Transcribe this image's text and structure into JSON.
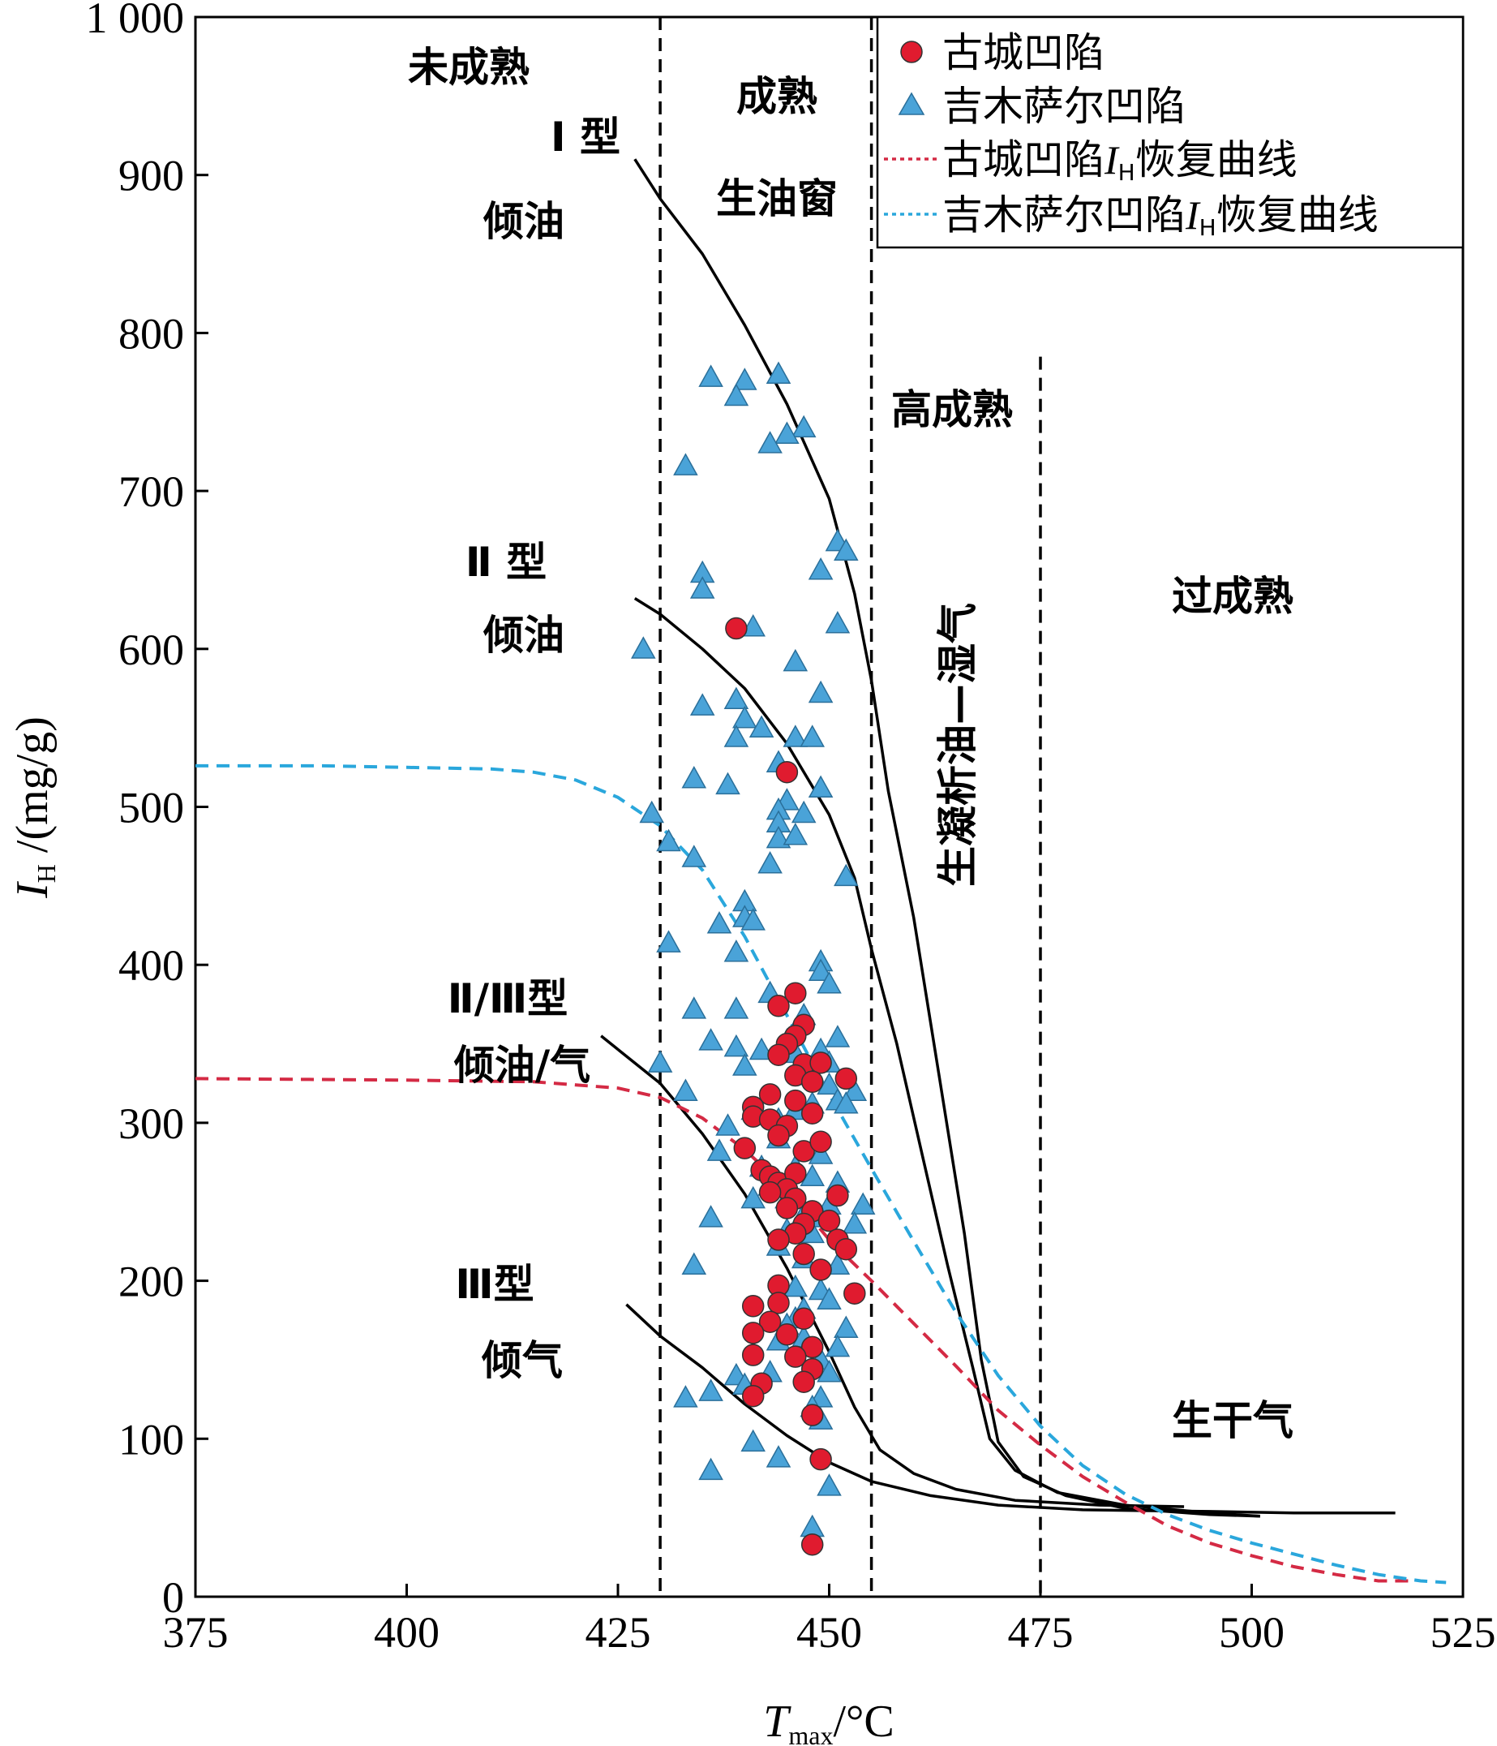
{
  "chart_data": {
    "type": "scatter",
    "xlabel": {
      "main": "T",
      "sub": "max",
      "unit": "/°C"
    },
    "ylabel": {
      "main": "I",
      "sub": "H",
      "unit": " /(mg/g)"
    },
    "xlim": [
      375,
      525
    ],
    "ylim": [
      0,
      1000
    ],
    "xticks": [
      375,
      400,
      425,
      450,
      475,
      500,
      525
    ],
    "xtick_labels": [
      "375",
      "400",
      "425",
      "450",
      "475",
      "500",
      "525"
    ],
    "yticks": [
      0,
      100,
      200,
      300,
      400,
      500,
      600,
      700,
      800,
      900,
      1000
    ],
    "ytick_labels": [
      "0",
      "100",
      "200",
      "300",
      "400",
      "500",
      "600",
      "700",
      "800",
      "900",
      "1 000"
    ],
    "legend_position": "top-right",
    "grid": false,
    "vlines": [
      430,
      455,
      475
    ],
    "vline_top": 785,
    "series": [
      {
        "name": "古城凹陷",
        "marker": "circle",
        "color": "#e01b2f",
        "points": [
          [
            439,
            613
          ],
          [
            445,
            522
          ],
          [
            446,
            382
          ],
          [
            444,
            374
          ],
          [
            447,
            362
          ],
          [
            446,
            355
          ],
          [
            445,
            350
          ],
          [
            444,
            343
          ],
          [
            447,
            337
          ],
          [
            449,
            338
          ],
          [
            446,
            330
          ],
          [
            448,
            326
          ],
          [
            452,
            328
          ],
          [
            443,
            318
          ],
          [
            441,
            310
          ],
          [
            446,
            314
          ],
          [
            441,
            304
          ],
          [
            443,
            302
          ],
          [
            448,
            306
          ],
          [
            445,
            298
          ],
          [
            444,
            292
          ],
          [
            447,
            282
          ],
          [
            449,
            288
          ],
          [
            440,
            284
          ],
          [
            442,
            270
          ],
          [
            443,
            266
          ],
          [
            444,
            262
          ],
          [
            446,
            268
          ],
          [
            445,
            258
          ],
          [
            443,
            256
          ],
          [
            446,
            252
          ],
          [
            451,
            254
          ],
          [
            445,
            246
          ],
          [
            448,
            244
          ],
          [
            447,
            236
          ],
          [
            450,
            238
          ],
          [
            446,
            230
          ],
          [
            444,
            226
          ],
          [
            451,
            226
          ],
          [
            452,
            220
          ],
          [
            447,
            217
          ],
          [
            449,
            207
          ],
          [
            444,
            197
          ],
          [
            453,
            192
          ],
          [
            441,
            184
          ],
          [
            444,
            186
          ],
          [
            447,
            176
          ],
          [
            443,
            174
          ],
          [
            441,
            167
          ],
          [
            445,
            166
          ],
          [
            448,
            158
          ],
          [
            441,
            153
          ],
          [
            446,
            152
          ],
          [
            448,
            144
          ],
          [
            447,
            136
          ],
          [
            442,
            135
          ],
          [
            441,
            127
          ],
          [
            448,
            115
          ],
          [
            449,
            87
          ],
          [
            448,
            33
          ]
        ]
      },
      {
        "name": "吉木萨尔凹陷",
        "marker": "triangle",
        "color": "#4aa3d8",
        "points": [
          [
            436,
            772
          ],
          [
            444,
            774
          ],
          [
            440,
            770
          ],
          [
            439,
            760
          ],
          [
            447,
            740
          ],
          [
            445,
            736
          ],
          [
            443,
            730
          ],
          [
            433,
            716
          ],
          [
            451,
            668
          ],
          [
            452,
            662
          ],
          [
            435,
            648
          ],
          [
            449,
            650
          ],
          [
            435,
            638
          ],
          [
            441,
            614
          ],
          [
            451,
            616
          ],
          [
            428,
            600
          ],
          [
            446,
            592
          ],
          [
            435,
            564
          ],
          [
            439,
            568
          ],
          [
            449,
            572
          ],
          [
            440,
            556
          ],
          [
            442,
            550
          ],
          [
            439,
            544
          ],
          [
            446,
            544
          ],
          [
            448,
            544
          ],
          [
            434,
            518
          ],
          [
            438,
            514
          ],
          [
            444,
            528
          ],
          [
            449,
            512
          ],
          [
            445,
            504
          ],
          [
            444,
            498
          ],
          [
            447,
            496
          ],
          [
            444,
            490
          ],
          [
            429,
            496
          ],
          [
            431,
            478
          ],
          [
            434,
            468
          ],
          [
            444,
            480
          ],
          [
            446,
            482
          ],
          [
            443,
            464
          ],
          [
            452,
            456
          ],
          [
            440,
            440
          ],
          [
            440,
            430
          ],
          [
            441,
            428
          ],
          [
            437,
            426
          ],
          [
            439,
            408
          ],
          [
            449,
            402
          ],
          [
            449,
            396
          ],
          [
            450,
            388
          ],
          [
            431,
            414
          ],
          [
            443,
            382
          ],
          [
            434,
            372
          ],
          [
            439,
            372
          ],
          [
            447,
            368
          ],
          [
            445,
            352
          ],
          [
            449,
            346
          ],
          [
            446,
            344
          ],
          [
            451,
            354
          ],
          [
            450,
            338
          ],
          [
            436,
            352
          ],
          [
            439,
            348
          ],
          [
            442,
            346
          ],
          [
            440,
            336
          ],
          [
            430,
            338
          ],
          [
            433,
            320
          ],
          [
            447,
            330
          ],
          [
            450,
            324
          ],
          [
            453,
            320
          ],
          [
            451,
            314
          ],
          [
            448,
            312
          ],
          [
            452,
            312
          ],
          [
            446,
            308
          ],
          [
            441,
            308
          ],
          [
            444,
            302
          ],
          [
            438,
            298
          ],
          [
            444,
            290
          ],
          [
            437,
            282
          ],
          [
            449,
            280
          ],
          [
            446,
            272
          ],
          [
            442,
            272
          ],
          [
            448,
            266
          ],
          [
            451,
            262
          ],
          [
            443,
            260
          ],
          [
            445,
            252
          ],
          [
            450,
            248
          ],
          [
            454,
            248
          ],
          [
            441,
            252
          ],
          [
            447,
            242
          ],
          [
            449,
            240
          ],
          [
            453,
            236
          ],
          [
            436,
            240
          ],
          [
            445,
            232
          ],
          [
            448,
            230
          ],
          [
            444,
            222
          ],
          [
            447,
            214
          ],
          [
            451,
            210
          ],
          [
            434,
            210
          ],
          [
            446,
            196
          ],
          [
            449,
            194
          ],
          [
            450,
            188
          ],
          [
            447,
            182
          ],
          [
            446,
            176
          ],
          [
            445,
            172
          ],
          [
            452,
            170
          ],
          [
            447,
            164
          ],
          [
            444,
            162
          ],
          [
            451,
            158
          ],
          [
            449,
            150
          ],
          [
            450,
            142
          ],
          [
            443,
            142
          ],
          [
            439,
            140
          ],
          [
            440,
            134
          ],
          [
            436,
            130
          ],
          [
            433,
            126
          ],
          [
            449,
            126
          ],
          [
            448,
            120
          ],
          [
            449,
            112
          ],
          [
            441,
            98
          ],
          [
            444,
            88
          ],
          [
            436,
            80
          ],
          [
            450,
            70
          ],
          [
            448,
            44
          ]
        ]
      },
      {
        "name": "古城凹陷IH恢复曲线",
        "type": "line",
        "dash": "dotted",
        "color": "#d42a44",
        "points": [
          [
            375,
            328
          ],
          [
            400,
            327
          ],
          [
            415,
            326
          ],
          [
            425,
            322
          ],
          [
            430,
            316
          ],
          [
            435,
            303
          ],
          [
            440,
            283
          ],
          [
            445,
            258
          ],
          [
            450,
            226
          ],
          [
            455,
            200
          ],
          [
            460,
            173
          ],
          [
            465,
            146
          ],
          [
            470,
            118
          ],
          [
            475,
            96
          ],
          [
            480,
            76
          ],
          [
            485,
            60
          ],
          [
            490,
            45
          ],
          [
            495,
            34
          ],
          [
            500,
            26
          ],
          [
            505,
            19
          ],
          [
            510,
            14
          ],
          [
            515,
            10
          ],
          [
            519,
            10
          ]
        ]
      },
      {
        "name": "吉木萨尔凹陷IH恢复曲线",
        "type": "line",
        "dash": "dotted",
        "color": "#2aa7dc",
        "points": [
          [
            375,
            526
          ],
          [
            390,
            526
          ],
          [
            400,
            525
          ],
          [
            410,
            524
          ],
          [
            415,
            522
          ],
          [
            420,
            517
          ],
          [
            425,
            506
          ],
          [
            430,
            488
          ],
          [
            435,
            460
          ],
          [
            440,
            418
          ],
          [
            445,
            368
          ],
          [
            450,
            318
          ],
          [
            455,
            271
          ],
          [
            460,
            225
          ],
          [
            465,
            180
          ],
          [
            470,
            140
          ],
          [
            475,
            108
          ],
          [
            480,
            83
          ],
          [
            485,
            65
          ],
          [
            490,
            52
          ],
          [
            495,
            42
          ],
          [
            500,
            34
          ],
          [
            505,
            27
          ],
          [
            510,
            20
          ],
          [
            515,
            14
          ],
          [
            520,
            10
          ],
          [
            523,
            9
          ]
        ]
      }
    ],
    "kerogen_curves": [
      {
        "points": [
          [
            427,
            910
          ],
          [
            430,
            885
          ],
          [
            435,
            850
          ],
          [
            440,
            805
          ],
          [
            445,
            755
          ],
          [
            450,
            695
          ],
          [
            453,
            635
          ],
          [
            455,
            580
          ],
          [
            457,
            510
          ],
          [
            460,
            430
          ],
          [
            463,
            330
          ],
          [
            466,
            230
          ],
          [
            468,
            150
          ],
          [
            470,
            98
          ],
          [
            473,
            76
          ],
          [
            478,
            64
          ],
          [
            485,
            56
          ],
          [
            495,
            52
          ],
          [
            501,
            51
          ]
        ]
      },
      {
        "points": [
          [
            427,
            632
          ],
          [
            430,
            622
          ],
          [
            435,
            600
          ],
          [
            440,
            575
          ],
          [
            445,
            540
          ],
          [
            450,
            495
          ],
          [
            453,
            455
          ],
          [
            455,
            410
          ],
          [
            458,
            350
          ],
          [
            461,
            280
          ],
          [
            464,
            210
          ],
          [
            467,
            145
          ],
          [
            469,
            100
          ],
          [
            472,
            80
          ],
          [
            477,
            66
          ],
          [
            485,
            58
          ],
          [
            495,
            53
          ],
          [
            501,
            51
          ]
        ]
      },
      {
        "points": [
          [
            423,
            355
          ],
          [
            430,
            325
          ],
          [
            435,
            293
          ],
          [
            440,
            255
          ],
          [
            445,
            208
          ],
          [
            450,
            155
          ],
          [
            453,
            120
          ],
          [
            456,
            93
          ],
          [
            460,
            78
          ],
          [
            465,
            68
          ],
          [
            472,
            61
          ],
          [
            482,
            58
          ],
          [
            492,
            57
          ]
        ]
      },
      {
        "points": [
          [
            426,
            185
          ],
          [
            430,
            165
          ],
          [
            435,
            145
          ],
          [
            440,
            122
          ],
          [
            445,
            102
          ],
          [
            450,
            85
          ],
          [
            455,
            73
          ],
          [
            462,
            64
          ],
          [
            470,
            58
          ],
          [
            480,
            55
          ],
          [
            495,
            54
          ],
          [
            505,
            53
          ],
          [
            517,
            53
          ]
        ]
      }
    ],
    "annotations": {
      "immature": "未成熟",
      "mature": "成熟",
      "oil_window": "生油窗",
      "high_mature": "高成熟",
      "condensate_wetgas": "生凝析油—湿气",
      "overmature": "过成熟",
      "dry_gas": "生干气",
      "type1": "Ⅰ 型",
      "type1_oil": "倾油",
      "type2": "Ⅱ 型",
      "type2_oil": "倾油",
      "type23": "Ⅱ/Ⅲ型",
      "type23_oilgas": "倾油/气",
      "type3": "Ⅲ型",
      "type3_gas": "倾气"
    },
    "legend": [
      {
        "label": "古城凹陷",
        "marker": "circle",
        "color": "#e01b2f"
      },
      {
        "label": "吉木萨尔凹陷",
        "marker": "triangle",
        "color": "#4aa3d8"
      },
      {
        "label_pre": "古城凹陷",
        "label_i": "I",
        "label_sub": "H",
        "label_post": "恢复曲线",
        "marker": "line",
        "color": "#d42a44"
      },
      {
        "label_pre": "吉木萨尔凹陷",
        "label_i": "I",
        "label_sub": "H",
        "label_post": "恢复曲线",
        "marker": "line",
        "color": "#2aa7dc"
      }
    ]
  }
}
